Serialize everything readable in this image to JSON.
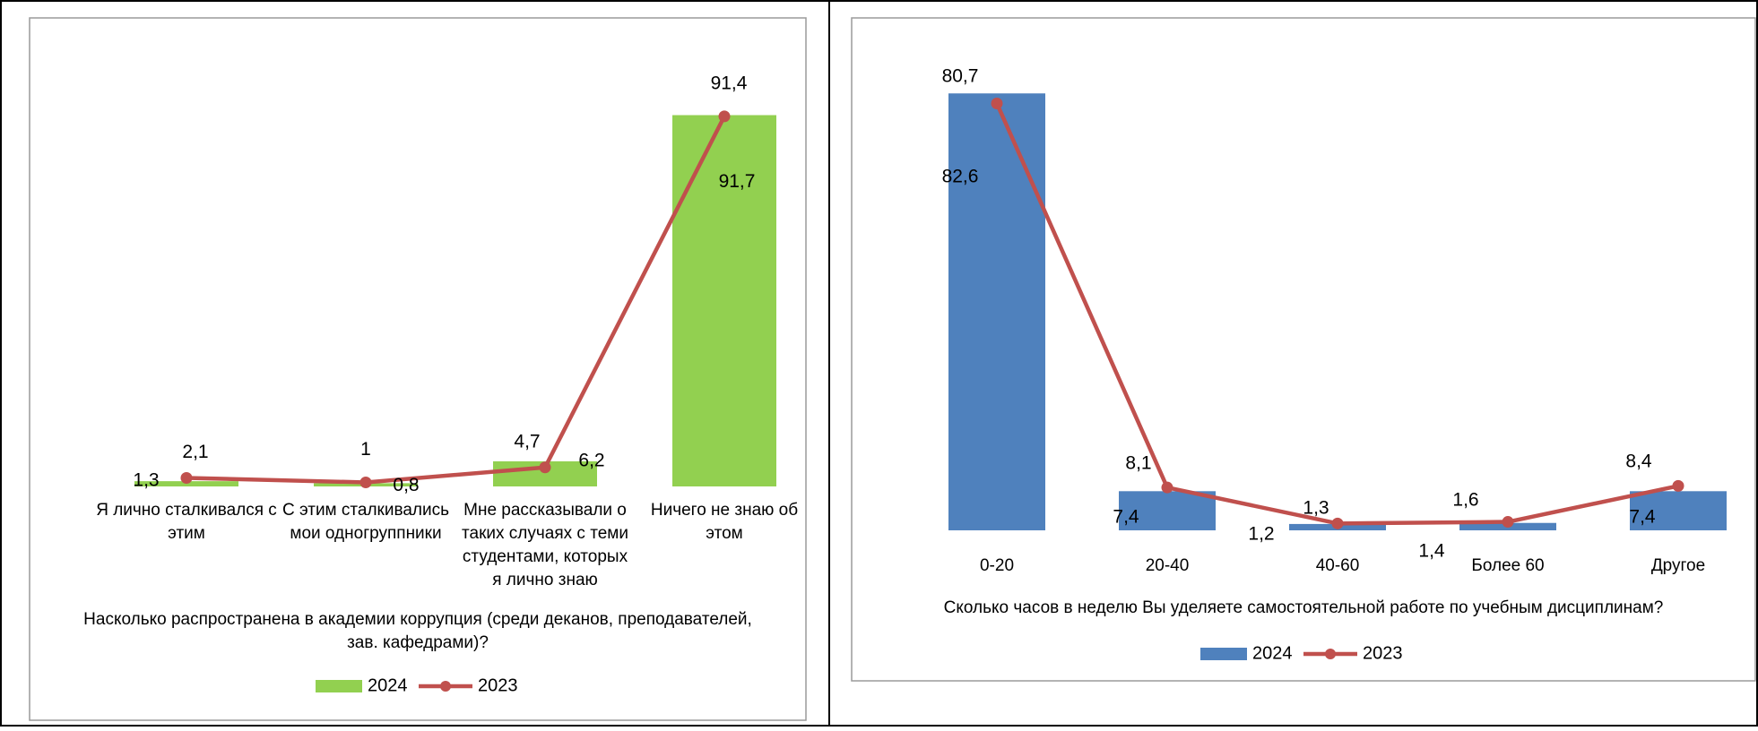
{
  "chart_data": [
    {
      "type": "bar",
      "categories": [
        "Я лично сталкивался с этим",
        "С этим сталкивались мои одногруппники",
        "Мне рассказывали о таких случаях с теми студентами, которых я лично знаю",
        "Ничего не знаю об этом"
      ],
      "category_lines": [
        [
          "Я лично сталкивался с",
          "этим"
        ],
        [
          "С этим сталкивались",
          "мои одногруппники"
        ],
        [
          "Мне рассказывали о",
          "таких случаях с теми",
          "студентами, которых",
          "я лично знаю"
        ],
        [
          "Ничего не знаю об",
          "этом"
        ]
      ],
      "title": "Насколько распространена в академии коррупция (среди деканов, преподавателей, зав. кафедрами)?",
      "title_lines": [
        "Насколько распространена в академии коррупция (среди деканов, преподавателей,",
        "зав. кафедрами)?"
      ],
      "series": [
        {
          "name": "2024",
          "kind": "bar",
          "color": "#92D050",
          "values": [
            1.3,
            0.8,
            6.2,
            91.7
          ],
          "labels": [
            "1,3",
            "0,8",
            "6,2",
            "91,7"
          ]
        },
        {
          "name": "2023",
          "kind": "line",
          "color": "#C0504D",
          "values": [
            2.1,
            1.0,
            4.7,
            91.4
          ],
          "labels": [
            "2,1",
            "1",
            "4,7",
            "91,4"
          ]
        }
      ],
      "ylim": [
        0,
        100
      ],
      "grid": false,
      "legend": "bottom"
    },
    {
      "type": "bar",
      "categories": [
        "0-20",
        "20-40",
        "40-60",
        "Более 60",
        "Другое"
      ],
      "category_lines": [
        [
          "0-20"
        ],
        [
          "20-40"
        ],
        [
          "40-60"
        ],
        [
          "Более 60"
        ],
        [
          "Другое"
        ]
      ],
      "title": "Сколько часов в неделю Вы уделяете самостоятельной работе по учебным дисциплинам?",
      "title_lines": [
        "Сколько часов в неделю Вы уделяете самостоятельной работе по учебным дисциплинам?"
      ],
      "series": [
        {
          "name": "2024",
          "kind": "bar",
          "color": "#4F81BD",
          "values": [
            82.6,
            7.4,
            1.2,
            1.4,
            7.4
          ],
          "labels": [
            "82,6",
            "7,4",
            "1,2",
            "1,4",
            "7,4"
          ]
        },
        {
          "name": "2023",
          "kind": "line",
          "color": "#C0504D",
          "values": [
            80.7,
            8.1,
            1.3,
            1.6,
            8.4
          ],
          "labels": [
            "80,7",
            "8,1",
            "1,3",
            "1,6",
            "8,4"
          ]
        }
      ],
      "ylim": [
        0,
        84
      ],
      "grid": false,
      "legend": "bottom"
    }
  ]
}
